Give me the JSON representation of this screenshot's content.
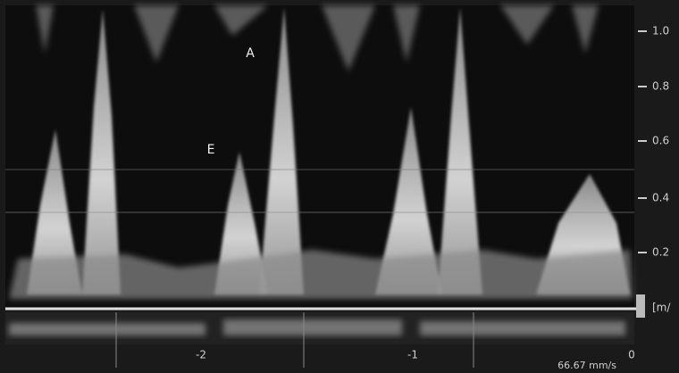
{
  "annotations": {
    "a_wave": "A",
    "e_wave": "E"
  },
  "velocity_scale": {
    "ticks": [
      "1.0",
      "0.8",
      "0.6",
      "0.4",
      "0.2"
    ],
    "unit": "[m/"
  },
  "time_scale": {
    "ticks": [
      "-2",
      "-1",
      "0"
    ],
    "sweep_speed": "66.67 mm/s"
  }
}
